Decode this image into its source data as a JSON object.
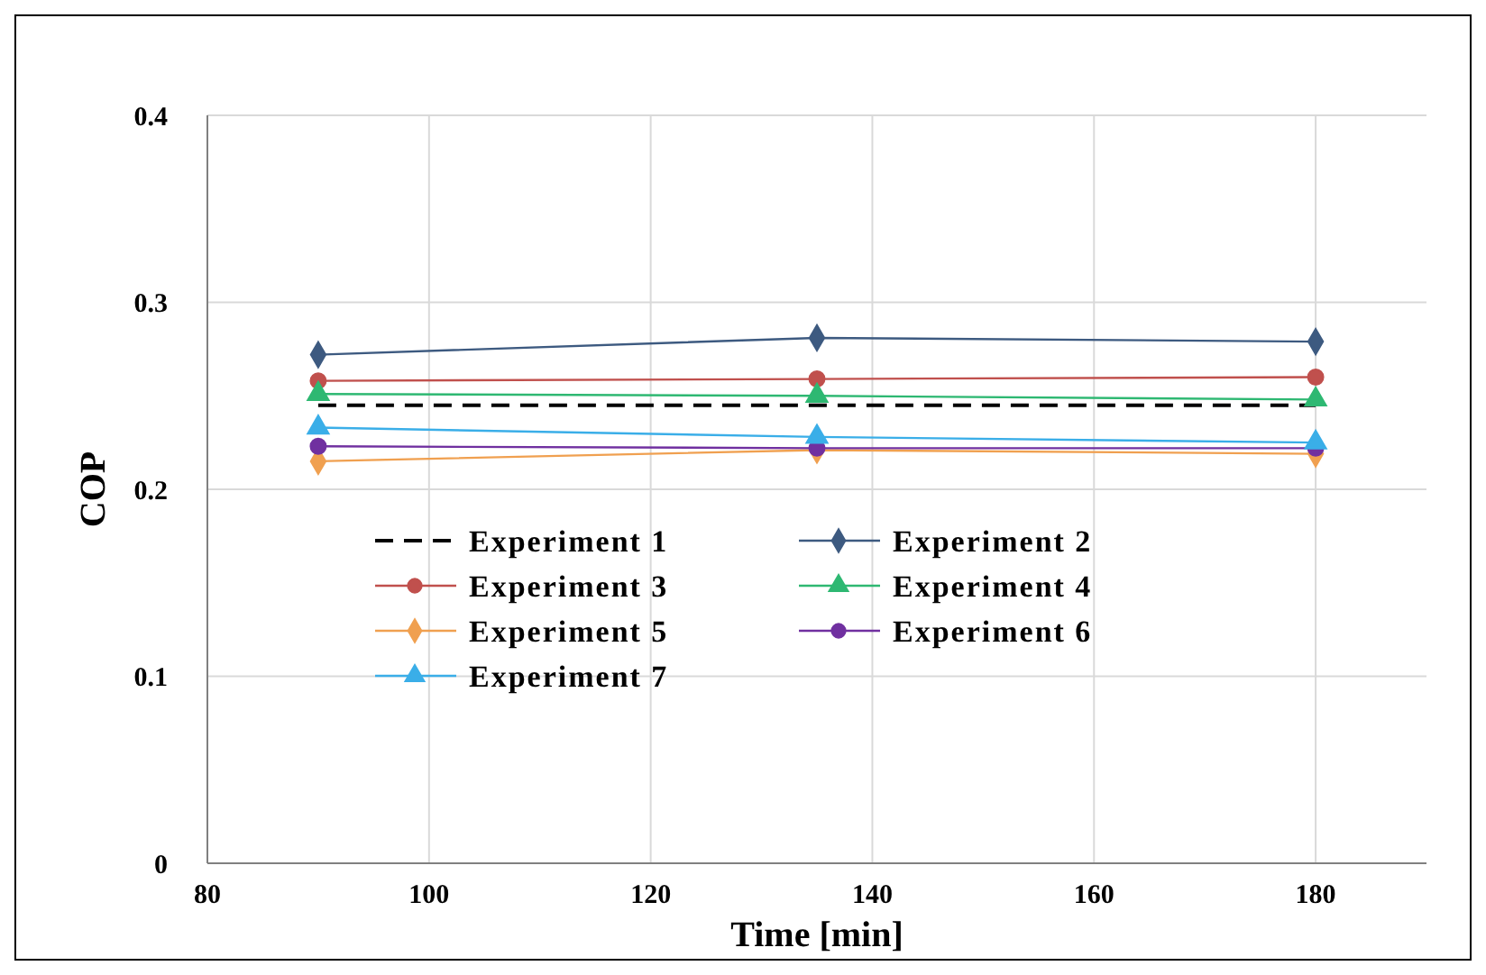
{
  "chart_data": {
    "type": "line",
    "xlabel": "Time [min]",
    "ylabel": "COP",
    "x": [
      90,
      135,
      180
    ],
    "xlim": [
      80,
      190
    ],
    "xticks": [
      80,
      100,
      120,
      140,
      160,
      180
    ],
    "ylim": [
      0,
      0.4
    ],
    "yticks": [
      0,
      0.1,
      0.2,
      0.3,
      0.4
    ],
    "grid": true,
    "legend": "center",
    "series": [
      {
        "name": "Experiment 1",
        "color": "#000000",
        "line_style": "dashed",
        "marker": "none",
        "values": [
          0.245,
          0.245,
          0.245
        ]
      },
      {
        "name": "Experiment 2",
        "color": "#3d5a80",
        "marker": "diamond",
        "values": [
          0.272,
          0.281,
          0.279
        ]
      },
      {
        "name": "Experiment 3",
        "color": "#c0504d",
        "marker": "circle",
        "values": [
          0.258,
          0.259,
          0.26
        ]
      },
      {
        "name": "Experiment 4",
        "color": "#2eb872",
        "marker": "triangle",
        "values": [
          0.251,
          0.25,
          0.248
        ]
      },
      {
        "name": "Experiment 5",
        "color": "#f0a050",
        "marker": "diamond",
        "values": [
          0.215,
          0.221,
          0.219
        ]
      },
      {
        "name": "Experiment 6",
        "color": "#7030a0",
        "marker": "circle",
        "values": [
          0.223,
          0.222,
          0.222
        ]
      },
      {
        "name": "Experiment 7",
        "color": "#3aaee8",
        "marker": "triangle",
        "values": [
          0.233,
          0.228,
          0.225
        ]
      }
    ]
  }
}
